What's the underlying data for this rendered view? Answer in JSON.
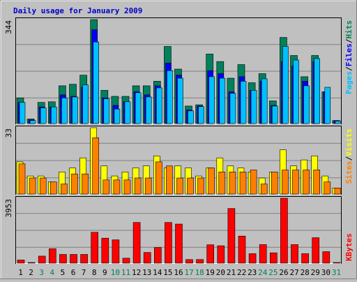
{
  "colors": {
    "background": "#c0c0c0",
    "panel": "#c0c0c0",
    "gridline": "#808080",
    "title": "#0000cc",
    "hits": "#00805c",
    "files": "#0000ff",
    "pages": "#00c0ff",
    "visits": "#ffff00",
    "sites": "#ff8000",
    "kbytes": "#ff0000",
    "weekend_label": "#00805c",
    "weekday_label": "#000000",
    "slash": "#000000"
  },
  "chart_data": {
    "type": "bar",
    "title": "Daily usage for January 2009",
    "days": [
      "1",
      "2",
      "3",
      "4",
      "5",
      "6",
      "7",
      "8",
      "9",
      "10",
      "11",
      "12",
      "13",
      "14",
      "15",
      "16",
      "17",
      "18",
      "19",
      "20",
      "21",
      "22",
      "23",
      "24",
      "25",
      "26",
      "27",
      "28",
      "29",
      "30",
      "31"
    ],
    "weekend_days": [
      "3",
      "4",
      "10",
      "11",
      "17",
      "18",
      "24",
      "25",
      "31"
    ],
    "panels": [
      {
        "id": "hits-files-pages",
        "max_label": "344",
        "ylim": [
          0,
          344
        ],
        "legend": [
          {
            "text": "Pages",
            "color_key": "pages"
          },
          {
            "text": "/",
            "color_key": "slash"
          },
          {
            "text": "Files",
            "color_key": "files"
          },
          {
            "text": "/",
            "color_key": "slash"
          },
          {
            "text": "Hits",
            "color_key": "hits"
          }
        ],
        "series": [
          {
            "name": "Hits",
            "color_key": "hits",
            "values": [
              85,
              15,
              70,
              72,
              125,
              130,
              160,
              344,
              110,
              90,
              90,
              125,
              125,
              140,
              255,
              180,
              58,
              62,
              230,
              205,
              150,
              195,
              135,
              165,
              75,
              285,
              225,
              155,
              225,
              105,
              10
            ]
          },
          {
            "name": "Files",
            "color_key": "files",
            "values": [
              70,
              12,
              55,
              55,
              95,
              90,
              120,
              310,
              85,
              60,
              72,
              105,
              95,
              125,
              200,
              160,
              45,
              58,
              175,
              165,
              105,
              155,
              110,
              140,
              60,
              205,
              190,
              140,
              205,
              105,
              10
            ]
          },
          {
            "name": "Pages",
            "color_key": "pages",
            "values": [
              70,
              10,
              52,
              55,
              85,
              88,
              128,
              270,
              82,
              48,
              72,
              102,
              88,
              118,
              175,
              150,
              42,
              56,
              155,
              150,
              100,
              140,
              110,
              148,
              58,
              255,
              210,
              125,
              215,
              120,
              8
            ]
          }
        ]
      },
      {
        "id": "visits-sites",
        "max_label": "33",
        "ylim": [
          0,
          33
        ],
        "legend": [
          {
            "text": "Sites",
            "color_key": "sites"
          },
          {
            "text": "/",
            "color_key": "slash"
          },
          {
            "text": "Visits",
            "color_key": "visits"
          }
        ],
        "series": [
          {
            "name": "Visits",
            "color_key": "visits",
            "values": [
              16,
              9,
              9,
              6,
              11,
              13,
              18,
              33,
              14,
              9,
              11,
              13,
              14,
              19,
              13,
              14,
              13,
              9,
              13,
              18,
              14,
              13,
              11,
              8,
              11,
              22,
              14,
              17,
              19,
              9,
              3
            ]
          },
          {
            "name": "Sites",
            "color_key": "sites",
            "values": [
              15,
              8,
              8,
              6,
              5,
              10,
              10,
              28,
              7,
              7,
              7,
              8,
              8,
              16,
              14,
              8,
              8,
              8,
              13,
              11,
              11,
              11,
              12,
              5,
              11,
              12,
              12,
              12,
              12,
              6,
              3
            ]
          }
        ]
      },
      {
        "id": "kbytes",
        "max_label": "3953",
        "ylim": [
          0,
          3953
        ],
        "legend": [
          {
            "text": "KBytes",
            "color_key": "kbytes"
          }
        ],
        "series": [
          {
            "name": "KBytes",
            "color_key": "kbytes",
            "values": [
              190,
              40,
              430,
              880,
              530,
              530,
              530,
              1880,
              1520,
              1420,
              300,
              2480,
              650,
              950,
              2480,
              2380,
              220,
              220,
              1120,
              1060,
              3330,
              1650,
              580,
              1130,
              630,
              3953,
              1130,
              580,
              1550,
              700,
              40
            ]
          }
        ]
      }
    ]
  }
}
